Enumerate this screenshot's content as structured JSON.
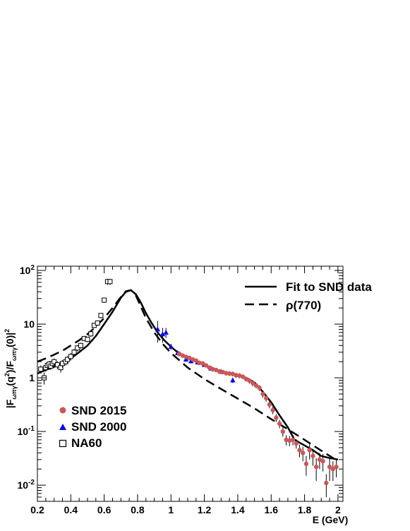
{
  "chart_data": {
    "type": "scatter",
    "log_y": true,
    "xlim": [
      0.2,
      2.03
    ],
    "ylim": [
      0.005,
      120
    ],
    "x_ticks": [
      0.2,
      0.4,
      0.6,
      0.8,
      1,
      1.2,
      1.4,
      1.6,
      1.8,
      2
    ],
    "x_tick_labels": [
      "0.2",
      "0.4",
      "0.6",
      "0.8",
      "1",
      "1.2",
      "1.4",
      "1.6",
      "1.8",
      "2"
    ],
    "y_ticks": [
      0.01,
      0.1,
      1,
      10,
      100
    ],
    "y_tick_base": "10",
    "y_tick_exponents": [
      "-2",
      "-1",
      "",
      "",
      "2"
    ],
    "y_tick_plain": [
      "",
      "",
      "1",
      "10",
      ""
    ],
    "xlabel": "E (GeV)",
    "ylabel": {
      "l1": "|F",
      "s1": "ωπγ",
      "l2": "(q",
      "p2": "2",
      "l3": ")/F",
      "s3": "ωπγ",
      "l4": "(0)|",
      "p4": "2"
    },
    "grid": false,
    "legend_top": [
      {
        "label": "Fit to SND data",
        "style": "solid"
      },
      {
        "label": "ρ(770)",
        "style": "dashed"
      }
    ],
    "legend_bottom": [
      {
        "label": "SND 2015",
        "marker": "circle",
        "color": "#c9585a"
      },
      {
        "label": "SND 2000",
        "marker": "triangle",
        "color": "#0b0bd6"
      },
      {
        "label": "NA60",
        "marker": "open-square",
        "color": "#000000"
      }
    ],
    "series": [
      {
        "name": "NA60",
        "marker": "open-square",
        "color": "#000000",
        "x": [
          0.22,
          0.24,
          0.25,
          0.26,
          0.27,
          0.28,
          0.29,
          0.3,
          0.32,
          0.34,
          0.35,
          0.37,
          0.38,
          0.4,
          0.42,
          0.44,
          0.46,
          0.48,
          0.5,
          0.52,
          0.54,
          0.56,
          0.58,
          0.6,
          0.62,
          0.635
        ],
        "y": [
          1.45,
          1.0,
          1.55,
          1.7,
          1.8,
          1.65,
          1.85,
          2.0,
          1.75,
          1.55,
          1.85,
          2.0,
          2.2,
          2.5,
          3.0,
          3.6,
          4.0,
          5.4,
          5.2,
          6.6,
          9.5,
          10.5,
          14.5,
          28,
          62,
          62
        ],
        "err": [
          0.25,
          0.25,
          0.25,
          0.25,
          0.25,
          0.25,
          0.25,
          0.3,
          0.3,
          0.3,
          0.3,
          0.3,
          0.35,
          0.4,
          0.45,
          0.5,
          0.5,
          0.6,
          0.6,
          0.8,
          1.0,
          1.2,
          1.6,
          3,
          8,
          8
        ]
      },
      {
        "name": "SND 2000",
        "marker": "triangle",
        "color": "#0b0bd6",
        "x": [
          0.92,
          0.95,
          0.97,
          1.0,
          1.04,
          1.09,
          1.12,
          1.16,
          1.2,
          1.24,
          1.3,
          1.37
        ],
        "y": [
          8.0,
          6.5,
          7.0,
          3.8,
          2.9,
          2.2,
          2.05,
          1.95,
          1.75,
          1.5,
          1.3,
          0.9
        ],
        "err": [
          3.5,
          2.0,
          1.5,
          0.5,
          0.3,
          0.2,
          0.2,
          0.2,
          0.15,
          0.15,
          0.12,
          0.1
        ]
      },
      {
        "name": "SND 2015",
        "marker": "circle",
        "color": "#c9585a",
        "x": [
          1.05,
          1.07,
          1.09,
          1.11,
          1.13,
          1.15,
          1.17,
          1.19,
          1.21,
          1.23,
          1.25,
          1.27,
          1.29,
          1.31,
          1.33,
          1.35,
          1.37,
          1.39,
          1.41,
          1.43,
          1.45,
          1.47,
          1.49,
          1.51,
          1.53,
          1.55,
          1.57,
          1.59,
          1.61,
          1.63,
          1.65,
          1.67,
          1.69,
          1.71,
          1.73,
          1.75,
          1.77,
          1.79,
          1.81,
          1.83,
          1.85,
          1.87,
          1.89,
          1.91,
          1.93,
          1.95,
          1.97,
          1.99
        ],
        "y": [
          2.8,
          2.6,
          2.45,
          2.35,
          2.2,
          2.1,
          1.9,
          1.85,
          1.7,
          1.55,
          1.45,
          1.4,
          1.32,
          1.28,
          1.22,
          1.2,
          1.18,
          1.12,
          1.1,
          1.05,
          0.95,
          0.88,
          0.8,
          0.72,
          0.65,
          0.5,
          0.42,
          0.32,
          0.25,
          0.18,
          0.14,
          0.1,
          0.07,
          0.068,
          0.07,
          0.06,
          0.045,
          0.04,
          0.025,
          0.045,
          0.035,
          0.022,
          0.03,
          0.028,
          0.011,
          0.022,
          0.02,
          0.022
        ],
        "err": [
          0.3,
          0.25,
          0.2,
          0.2,
          0.2,
          0.2,
          0.18,
          0.18,
          0.15,
          0.15,
          0.15,
          0.12,
          0.12,
          0.12,
          0.12,
          0.12,
          0.12,
          0.12,
          0.12,
          0.1,
          0.1,
          0.1,
          0.1,
          0.08,
          0.08,
          0.07,
          0.06,
          0.05,
          0.04,
          0.03,
          0.025,
          0.02,
          0.015,
          0.015,
          0.015,
          0.012,
          0.012,
          0.012,
          0.01,
          0.015,
          0.012,
          0.01,
          0.01,
          0.01,
          0.005,
          0.01,
          0.008,
          0.008
        ]
      }
    ],
    "curves": [
      {
        "name": "Fit to SND data",
        "style": "solid",
        "x": [
          0.2,
          0.25,
          0.3,
          0.35,
          0.4,
          0.45,
          0.5,
          0.55,
          0.6,
          0.65,
          0.7,
          0.73,
          0.76,
          0.79,
          0.82,
          0.85,
          0.88,
          0.92,
          0.96,
          1.0,
          1.05,
          1.1,
          1.15,
          1.2,
          1.25,
          1.3,
          1.35,
          1.4,
          1.45,
          1.5,
          1.55,
          1.6,
          1.65,
          1.7,
          1.74,
          1.8,
          1.85,
          1.9,
          1.95,
          2.0
        ],
        "y": [
          1.2,
          1.4,
          1.6,
          1.9,
          2.3,
          3.0,
          4.0,
          6.0,
          10.0,
          17.0,
          31.0,
          40.0,
          43.0,
          36.0,
          25.0,
          16.0,
          11.0,
          7.0,
          5.0,
          3.8,
          2.8,
          2.3,
          2.0,
          1.7,
          1.5,
          1.33,
          1.2,
          1.1,
          1.0,
          0.82,
          0.55,
          0.35,
          0.2,
          0.12,
          0.07,
          0.055,
          0.045,
          0.035,
          0.032,
          0.03
        ]
      },
      {
        "name": "ρ(770)",
        "style": "dashed",
        "x": [
          0.2,
          0.25,
          0.3,
          0.35,
          0.4,
          0.45,
          0.5,
          0.55,
          0.6,
          0.65,
          0.7,
          0.73,
          0.76,
          0.79,
          0.82,
          0.85,
          0.9,
          0.95,
          1.0,
          1.1,
          1.2,
          1.3,
          1.4,
          1.5,
          1.6,
          1.7,
          1.8,
          1.9,
          2.0
        ],
        "y": [
          2.0,
          2.3,
          2.7,
          3.2,
          4.0,
          5.0,
          6.5,
          9.0,
          13.0,
          20.0,
          32.0,
          41.0,
          43.0,
          34.0,
          21.0,
          13.0,
          7.0,
          4.3,
          2.9,
          1.55,
          0.95,
          0.62,
          0.41,
          0.27,
          0.17,
          0.11,
          0.07,
          0.044,
          0.028
        ]
      }
    ]
  }
}
